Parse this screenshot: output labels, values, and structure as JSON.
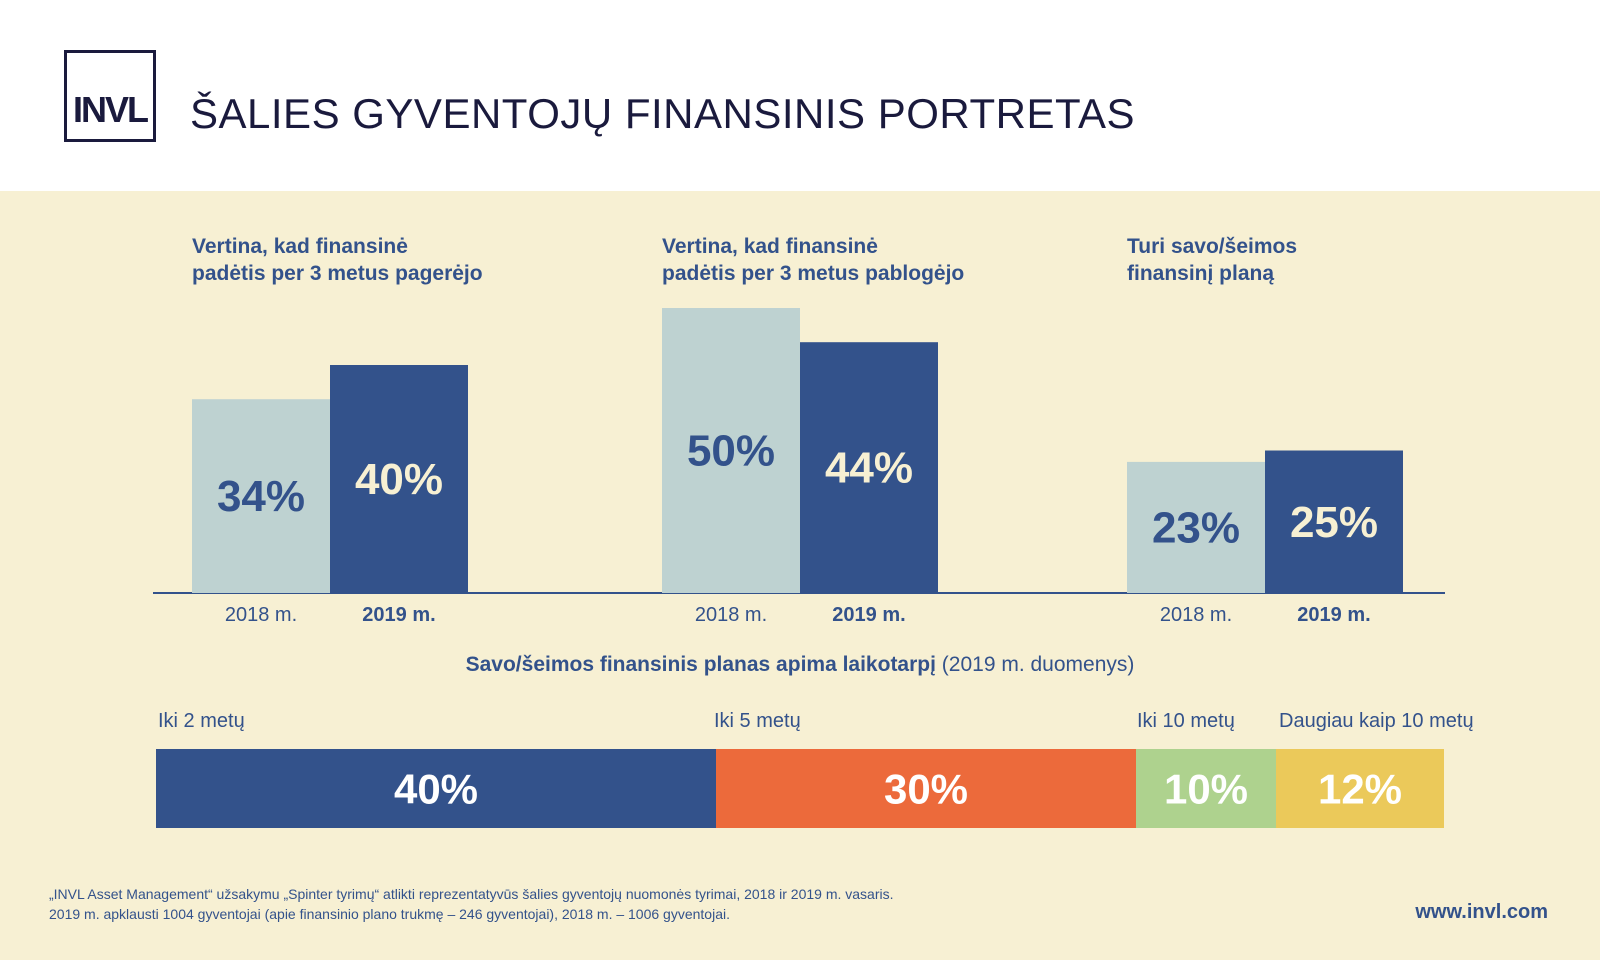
{
  "header": {
    "logo_text": "INVL",
    "title": "ŠALIES GYVENTOJŲ FINANSINIS PORTRETAS"
  },
  "colors": {
    "light_bar": "#bed2d1",
    "dark_bar": "#33528b",
    "axis": "#33528b",
    "text_dark": "#33528b",
    "text_light": "#f7f0d3"
  },
  "chart_data": [
    {
      "type": "bar",
      "title_lines": [
        "Vertina, kad finansinė",
        "padėtis per 3 metus pagerėjo"
      ],
      "categories": [
        "2018 m.",
        "2019 m."
      ],
      "values": [
        34,
        40
      ],
      "labels": [
        "34%",
        "40%"
      ]
    },
    {
      "type": "bar",
      "title_lines": [
        "Vertina, kad finansinė",
        "padėtis per 3 metus pablogėjo"
      ],
      "categories": [
        "2018 m.",
        "2019 m."
      ],
      "values": [
        50,
        44
      ],
      "labels": [
        "50%",
        "44%"
      ]
    },
    {
      "type": "bar",
      "title_lines": [
        "Turi savo/šeimos",
        "finansinį planą"
      ],
      "categories": [
        "2018 m.",
        "2019 m."
      ],
      "values": [
        23,
        25
      ],
      "labels": [
        "23%",
        "25%"
      ]
    },
    {
      "type": "bar",
      "orientation": "stacked-horizontal",
      "title_bold": "Savo/šeimos finansinis planas apima laikotarpį",
      "title_normal": " (2019 m. duomenys)",
      "categories": [
        "Iki 2 metų",
        "Iki 5 metų",
        "Iki 10 metų",
        "Daugiau kaip 10 metų"
      ],
      "values": [
        40,
        30,
        10,
        12
      ],
      "labels": [
        "40%",
        "30%",
        "10%",
        "12%"
      ],
      "colors": [
        "#33528b",
        "#ec6a3b",
        "#aed28e",
        "#ebc95a"
      ]
    }
  ],
  "footnote": [
    "„INVL Asset Management“ užsakymu „Spinter tyrimų“ atlikti reprezentatyvūs šalies gyventojų nuomonės tyrimai, 2018 ir 2019 m. vasaris.",
    "2019 m. apklausti 1004 gyventojai (apie finansinio plano trukmę – 246 gyventojai), 2018 m. – 1006 gyventojai."
  ],
  "url": "www.invl.com"
}
